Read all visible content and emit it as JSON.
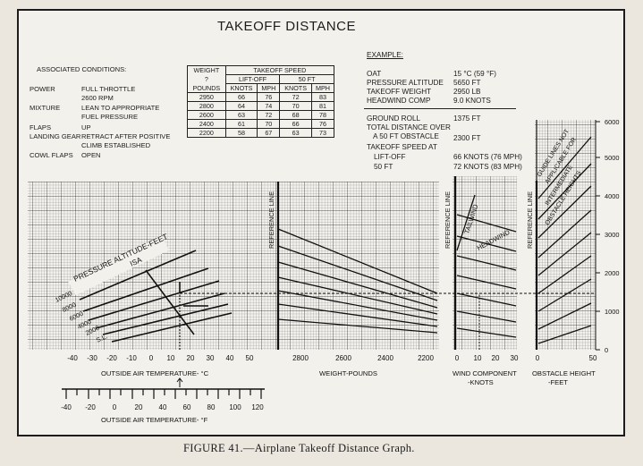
{
  "title": "TAKEOFF DISTANCE",
  "conditions": {
    "heading": "ASSOCIATED CONDITIONS:",
    "rows": [
      {
        "label": "POWER",
        "value": "FULL THROTTLE",
        "extra": "2600 RPM"
      },
      {
        "label": "MIXTURE",
        "value": "LEAN TO APPROPRIATE",
        "extra": "FUEL PRESSURE"
      },
      {
        "label": "FLAPS",
        "value": "UP",
        "extra": ""
      },
      {
        "label": "LANDING GEAR",
        "value": "RETRACT AFTER POSITIVE",
        "extra": "CLIMB ESTABLISHED"
      },
      {
        "label": "COWL FLAPS",
        "value": "OPEN",
        "extra": ""
      }
    ]
  },
  "speed_table": {
    "weight_header": "WEIGHT",
    "weight_sub": "?",
    "weight_unit": "POUNDS",
    "speed_header": "TAKEOFF SPEED",
    "liftoff_header": "LIFT-OFF",
    "ft50_header": "50 FT",
    "unit_knots": "KNOTS",
    "unit_mph": "MPH",
    "rows": [
      [
        "2950",
        "66",
        "76",
        "72",
        "83"
      ],
      [
        "2800",
        "64",
        "74",
        "70",
        "81"
      ],
      [
        "2600",
        "63",
        "72",
        "68",
        "78"
      ],
      [
        "2400",
        "61",
        "70",
        "66",
        "76"
      ],
      [
        "2200",
        "58",
        "67",
        "63",
        "73"
      ]
    ]
  },
  "example": {
    "heading": "EXAMPLE:",
    "rows": [
      {
        "label": "OAT",
        "value": "15 °C (59 °F)"
      },
      {
        "label": "PRESSURE ALTITUDE",
        "value": "5650 FT"
      },
      {
        "label": "TAKEOFF WEIGHT",
        "value": "2950 LB"
      },
      {
        "label": "HEADWIND COMP",
        "value": "9.0 KNOTS"
      }
    ],
    "ground_roll_label": "GROUND ROLL",
    "ground_roll_value": "1375 FT",
    "total_label_1": "TOTAL DISTANCE OVER",
    "total_label_2": "A 50 FT OBSTACLE",
    "total_value": "2300 FT",
    "speed_label": "TAKEOFF SPEED AT",
    "liftoff_label": "LIFT-OFF",
    "liftoff_value": "66 KNOTS (76 MPH)",
    "ft50_label": "50 FT",
    "ft50_value": "72 KNOTS (83 MPH)"
  },
  "chart_labels": {
    "pressure_altitude": "PRESSURE ALTITUDE-FEET",
    "isa": "ISA",
    "altitudes": [
      "10000",
      "8000",
      "6000",
      "4000",
      "2000",
      "S.L."
    ],
    "reference_line": "REFERENCE LINE",
    "tailwind": "TAILWIND",
    "headwind": "HEADWIND",
    "guide_note": [
      "GUIDE LINES NOT",
      "APPLICABLE FOR",
      "INTERMEDIATE",
      "OBSTACLE HEIGHTS"
    ]
  },
  "axes": {
    "oat_c": {
      "label": "OUTSIDE AIR TEMPERATURE- °C",
      "ticks": [
        "-40",
        "-30",
        "-20",
        "-10",
        "0",
        "10",
        "20",
        "30",
        "40",
        "50"
      ]
    },
    "oat_f": {
      "label": "OUTSIDE AIR TEMPERATURE- °F",
      "ticks": [
        "-40",
        "-20",
        "0",
        "20",
        "40",
        "60",
        "80",
        "100",
        "120"
      ]
    },
    "weight": {
      "label": "WEIGHT-POUNDS",
      "ticks": [
        "2800",
        "2600",
        "2400",
        "2200"
      ]
    },
    "wind": {
      "label_1": "WIND COMPONENT",
      "label_2": "-KNOTS",
      "ticks": [
        "0",
        "10",
        "20",
        "30"
      ]
    },
    "obstacle": {
      "label_1": "OBSTACLE HEIGHT",
      "label_2": "-FEET",
      "ticks": [
        "0",
        "50"
      ]
    },
    "distance": {
      "ticks": [
        "0",
        "1000",
        "2000",
        "3000",
        "4000",
        "5000",
        "6000"
      ]
    }
  },
  "caption": "FIGURE 41.—Airplane Takeoff Distance Graph."
}
